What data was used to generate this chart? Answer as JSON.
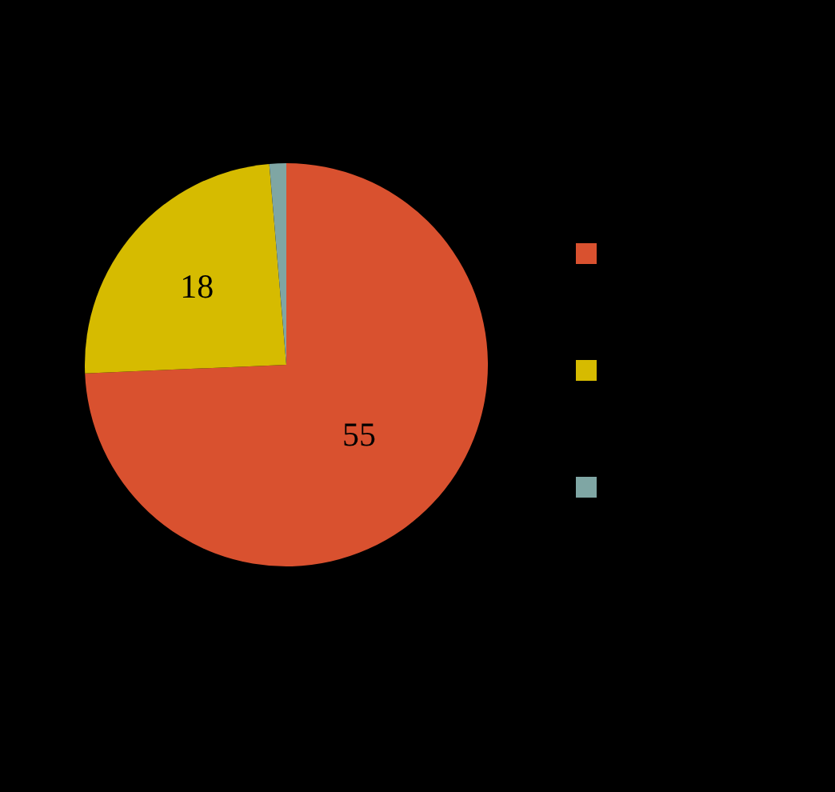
{
  "chart_data": {
    "type": "pie",
    "categories": [
      null,
      null,
      null
    ],
    "values": [
      55,
      18,
      1
    ],
    "value_labels": [
      "55",
      "18",
      null
    ],
    "colors": [
      "#d9512f",
      "#d6bb00",
      "#7fa6a4"
    ]
  }
}
